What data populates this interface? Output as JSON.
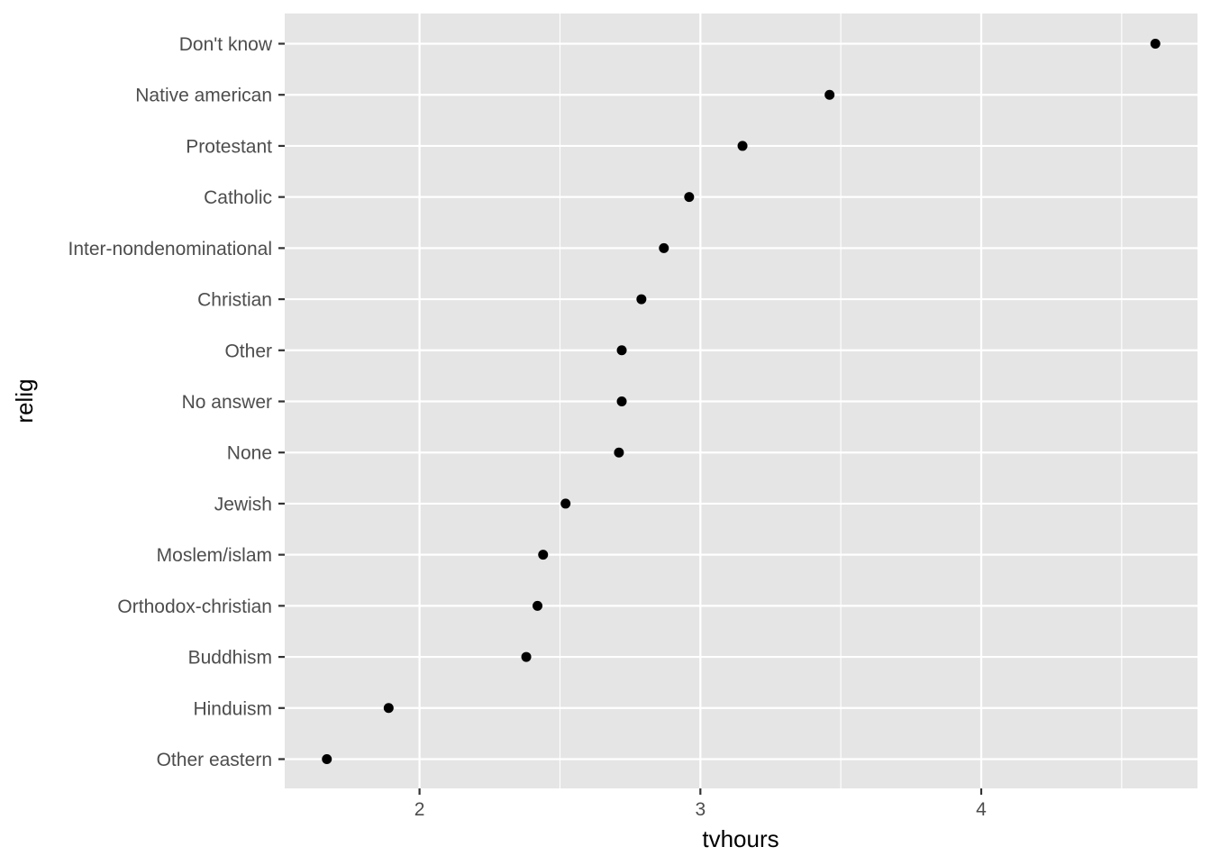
{
  "chart_data": {
    "type": "scatter",
    "title": "",
    "xlabel": "tvhours",
    "ylabel": "relig",
    "xlim": [
      1.52,
      4.77
    ],
    "x_ticks": [
      "2",
      "3",
      "4"
    ],
    "x_tick_values": [
      2,
      3,
      4
    ],
    "grid": true,
    "categories": [
      "Other eastern",
      "Hinduism",
      "Buddhism",
      "Orthodox-christian",
      "Moslem/islam",
      "Jewish",
      "None",
      "No answer",
      "Other",
      "Christian",
      "Inter-nondenominational",
      "Catholic",
      "Protestant",
      "Native american",
      "Don't know"
    ],
    "values": [
      1.67,
      1.89,
      2.38,
      2.42,
      2.44,
      2.52,
      2.71,
      2.72,
      2.72,
      2.79,
      2.87,
      2.96,
      3.15,
      3.46,
      4.62
    ],
    "colors": {
      "panel": "#e5e5e5",
      "grid": "#ffffff",
      "point": "#000000",
      "tick": "#333333",
      "tick_label": "#4d4d4d"
    }
  }
}
